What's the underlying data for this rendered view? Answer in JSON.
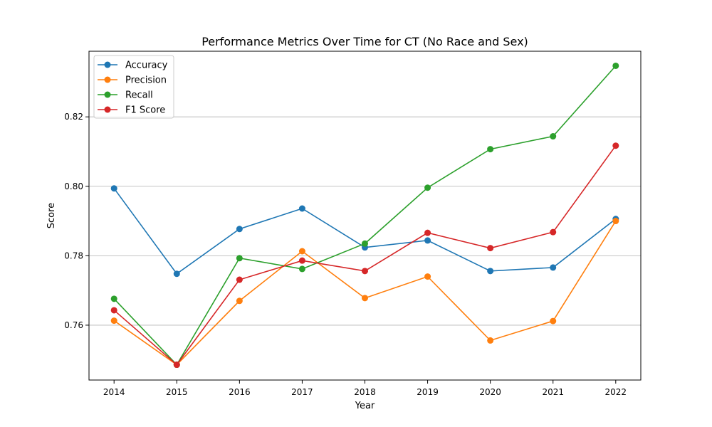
{
  "chart_data": {
    "type": "line",
    "title": "Performance Metrics Over Time for CT (No Race and Sex)",
    "xlabel": "Year",
    "ylabel": "Score",
    "x": [
      "2014",
      "2015",
      "2016",
      "2017",
      "2018",
      "2019",
      "2020",
      "2021",
      "2022"
    ],
    "ylim": [
      0.7442,
      0.8389
    ],
    "y_ticks": [
      "0.76",
      "0.78",
      "0.80",
      "0.82"
    ],
    "y_tick_values": [
      0.76,
      0.78,
      0.8,
      0.82
    ],
    "grid": "horizontal",
    "legend_position": "top-left",
    "series": [
      {
        "name": "Accuracy",
        "color": "#1f77b4",
        "values": [
          0.7994,
          0.7748,
          0.7877,
          0.7936,
          0.7824,
          0.7844,
          0.7756,
          0.7766,
          0.7906
        ]
      },
      {
        "name": "Precision",
        "color": "#ff7f0e",
        "values": [
          0.7613,
          0.7486,
          0.767,
          0.7813,
          0.7678,
          0.774,
          0.7556,
          0.7612,
          0.79
        ]
      },
      {
        "name": "Recall",
        "color": "#2ca02c",
        "values": [
          0.7676,
          0.7486,
          0.7793,
          0.7762,
          0.7835,
          0.7996,
          0.8107,
          0.8144,
          0.8347
        ]
      },
      {
        "name": "F1 Score",
        "color": "#d62728",
        "values": [
          0.7643,
          0.7486,
          0.7731,
          0.7786,
          0.7756,
          0.7866,
          0.7822,
          0.7868,
          0.8117
        ]
      }
    ]
  }
}
